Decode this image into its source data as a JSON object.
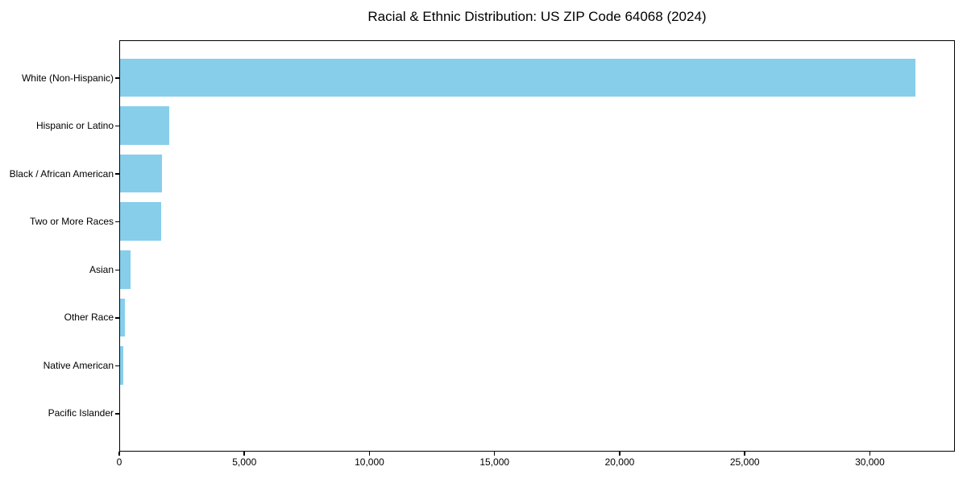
{
  "chart_data": {
    "type": "bar",
    "orientation": "horizontal",
    "title": "Racial & Ethnic Distribution: US ZIP Code 64068 (2024)",
    "categories": [
      "White (Non-Hispanic)",
      "Hispanic or Latino",
      "Black / African American",
      "Two or More Races",
      "Asian",
      "Other Race",
      "Native American",
      "Pacific Islander"
    ],
    "values": [
      31800,
      1970,
      1670,
      1650,
      410,
      180,
      130,
      0
    ],
    "xlabel": "",
    "ylabel": "",
    "xlim": [
      0,
      33400
    ],
    "x_ticks": [
      {
        "value": 0,
        "label": "0"
      },
      {
        "value": 5000,
        "label": "5,000"
      },
      {
        "value": 10000,
        "label": "10,000"
      },
      {
        "value": 15000,
        "label": "15,000"
      },
      {
        "value": 20000,
        "label": "20,000"
      },
      {
        "value": 25000,
        "label": "25,000"
      },
      {
        "value": 30000,
        "label": "30,000"
      }
    ],
    "bar_color": "#87CEEB",
    "frame_color": "#000000",
    "grid": false,
    "legend_position": "none",
    "bar_height_fraction": 0.8
  }
}
